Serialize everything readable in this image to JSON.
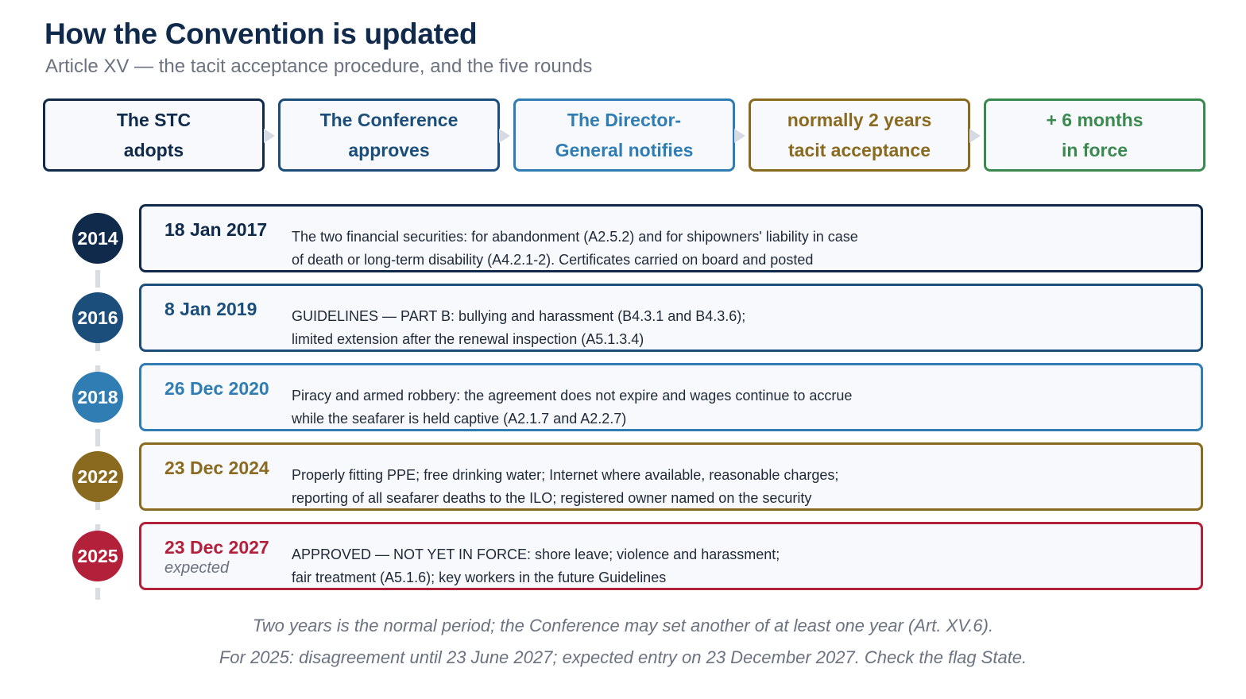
{
  "header": {
    "title": "How the Convention is updated",
    "subtitle": "Article XV — the tacit acceptance procedure, and the five rounds"
  },
  "steps": [
    {
      "line1": "The STC",
      "line2": "adopts",
      "color": "#0f2a4a"
    },
    {
      "line1": "The Conference",
      "line2": "approves",
      "color": "#1b4e7a"
    },
    {
      "line1": "The Director-",
      "line2": "General notifies",
      "color": "#2f7db3"
    },
    {
      "line1": "normally 2 years",
      "line2": "tacit acceptance",
      "color": "#8a6a1f"
    },
    {
      "line1": "+ 6 months",
      "line2": "in force",
      "color": "#3a8a4f"
    }
  ],
  "rounds": [
    {
      "year": "2014",
      "date": "18 Jan 2017",
      "expected": "",
      "line1": "The two financial securities: for abandonment (A2.5.2) and for shipowners' liability in case",
      "line2": "of death or long-term disability (A4.2.1-2). Certificates carried on board and posted",
      "color": "#0f2a4a"
    },
    {
      "year": "2016",
      "date": "8 Jan 2019",
      "expected": "",
      "line1": "GUIDELINES — PART B: bullying and harassment (B4.3.1 and B4.3.6);",
      "line2": "limited extension after the renewal inspection (A5.1.3.4)",
      "color": "#1b4e7a"
    },
    {
      "year": "2018",
      "date": "26 Dec 2020",
      "expected": "",
      "line1": "Piracy and armed robbery: the agreement does not expire and wages continue to accrue",
      "line2": "while the seafarer is held captive (A2.1.7 and A2.2.7)",
      "color": "#2f7db3"
    },
    {
      "year": "2022",
      "date": "23 Dec 2024",
      "expected": "",
      "line1": "Properly fitting PPE; free drinking water; Internet where available, reasonable charges;",
      "line2": "reporting of all seafarer deaths to the ILO; registered owner named on the security",
      "color": "#8a6a1f"
    },
    {
      "year": "2025",
      "date": "23 Dec 2027",
      "expected": "expected",
      "line1": "APPROVED — NOT YET IN FORCE: shore leave; violence and harassment;",
      "line2": "fair treatment (A5.1.6); key workers in the future Guidelines",
      "color": "#b3203a"
    }
  ],
  "notes": {
    "line1": "Two years is the normal period; the Conference may set another of at least one year (Art. XV.6).",
    "line2": "For 2025: disagreement until 23 June 2027; expected entry on 23 December 2027. Check the flag State."
  }
}
